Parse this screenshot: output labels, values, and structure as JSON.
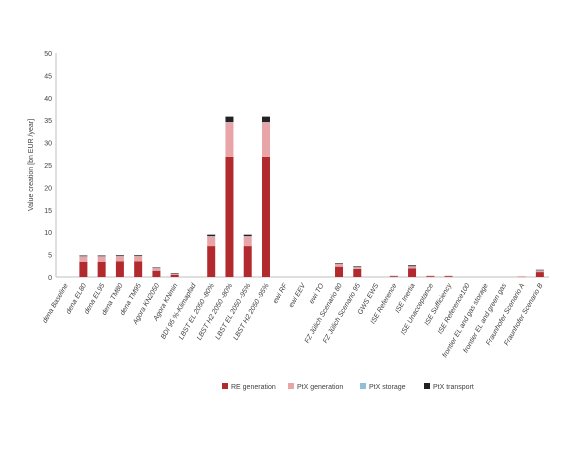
{
  "chart_data": {
    "type": "bar",
    "stacked": true,
    "title": "",
    "xlabel": "",
    "ylabel": "Value creation [bn EUR /year]",
    "ylim": [
      0,
      50
    ],
    "yticks": [
      0,
      5,
      10,
      15,
      20,
      25,
      30,
      35,
      40,
      45,
      50
    ],
    "grid": false,
    "legend_position": "bottom",
    "categories": [
      "dena Baseline",
      "dena EL80",
      "dena EL95",
      "dena TM80",
      "dena TM95",
      "Agora KN2050",
      "Agora KNmin",
      "BDI 95 %-Klimapfad",
      "LBST EL 2050 -80%",
      "LBST H2 2050 -80%",
      "LBST EL 2050 -95%",
      "LBST H2 2050 -95%",
      "ewi RF",
      "ewi EEV",
      "ewi TO",
      "FZ Jülich Scenario 80",
      "FZ Jülich Scenario 95",
      "GWS EWS",
      "ISE Reference",
      "ISE Inertia",
      "ISE Unacceptance",
      "ISE Sufficiency",
      "ISE Reference100",
      "frontier EL and gas storage",
      "frontier EL and green gas",
      "Fraunhofer Scenario A",
      "Fraunhofer Scenario B"
    ],
    "series": [
      {
        "name": "RE generation",
        "color": "#b22a2e",
        "values": [
          0,
          3.4,
          3.4,
          3.5,
          3.5,
          1.4,
          0.5,
          0,
          6.9,
          26.8,
          6.9,
          26.8,
          0,
          0,
          0,
          2.3,
          1.8,
          0,
          0.2,
          1.9,
          0.2,
          0.2,
          0,
          0,
          0,
          0.1,
          1.1
        ]
      },
      {
        "name": "PtX generation",
        "color": "#e8a4a6",
        "values": [
          0,
          1.2,
          1.2,
          1.2,
          1.2,
          0.6,
          0.3,
          0,
          2.2,
          7.7,
          2.2,
          7.7,
          0,
          0,
          0,
          0.7,
          0.4,
          0,
          0.1,
          0.5,
          0.1,
          0.1,
          0,
          0,
          0,
          0.05,
          0.4
        ]
      },
      {
        "name": "PtX storage",
        "color": "#8ec0d6",
        "values": [
          0,
          0.05,
          0.05,
          0.05,
          0.05,
          0.02,
          0,
          0,
          0.05,
          0.1,
          0.05,
          0.1,
          0,
          0,
          0,
          0.02,
          0.02,
          0,
          0,
          0.02,
          0,
          0,
          0,
          0,
          0,
          0,
          0.02
        ]
      },
      {
        "name": "PtX transport",
        "color": "#222222",
        "values": [
          0,
          0.15,
          0.15,
          0.15,
          0.15,
          0.1,
          0.05,
          0,
          0.3,
          1.2,
          0.3,
          1.2,
          0,
          0,
          0,
          0.1,
          0.15,
          0,
          0,
          0.2,
          0,
          0,
          0,
          0,
          0,
          0,
          0.1
        ]
      }
    ]
  }
}
